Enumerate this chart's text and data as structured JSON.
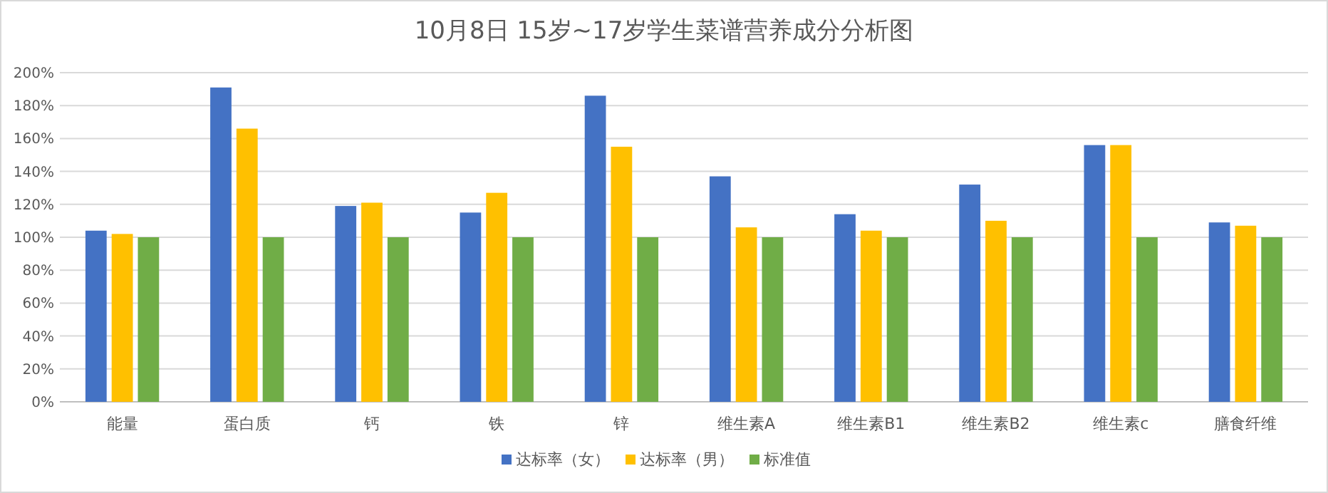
{
  "chart_data": {
    "type": "bar",
    "title": "10月8日 15岁~17岁学生菜谱营养成分分析图",
    "categories": [
      "能量",
      "蛋白质",
      "钙",
      "铁",
      "锌",
      "维生素A",
      "维生素B1",
      "维生素B2",
      "维生素c",
      "膳食纤维"
    ],
    "series": [
      {
        "name": "达标率（女）",
        "color": "#4472c4",
        "values": [
          104,
          191,
          119,
          115,
          186,
          137,
          114,
          132,
          156,
          109
        ]
      },
      {
        "name": "达标率（男）",
        "color": "#ffc000",
        "values": [
          102,
          166,
          121,
          127,
          155,
          106,
          104,
          110,
          156,
          107
        ]
      },
      {
        "name": "标准值",
        "color": "#70ad47",
        "values": [
          100,
          100,
          100,
          100,
          100,
          100,
          100,
          100,
          100,
          100
        ]
      }
    ],
    "ylim": [
      0,
      200
    ],
    "yticks": [
      {
        "value": 0,
        "label": "0%"
      },
      {
        "value": 20,
        "label": "20%"
      },
      {
        "value": 40,
        "label": "40%"
      },
      {
        "value": 60,
        "label": "60%"
      },
      {
        "value": 80,
        "label": "80%"
      },
      {
        "value": 100,
        "label": "100%"
      },
      {
        "value": 120,
        "label": "120%"
      },
      {
        "value": 140,
        "label": "140%"
      },
      {
        "value": 160,
        "label": "160%"
      },
      {
        "value": 180,
        "label": "180%"
      },
      {
        "value": 200,
        "label": "200%"
      }
    ],
    "grid": "y",
    "legend": "bottom"
  }
}
